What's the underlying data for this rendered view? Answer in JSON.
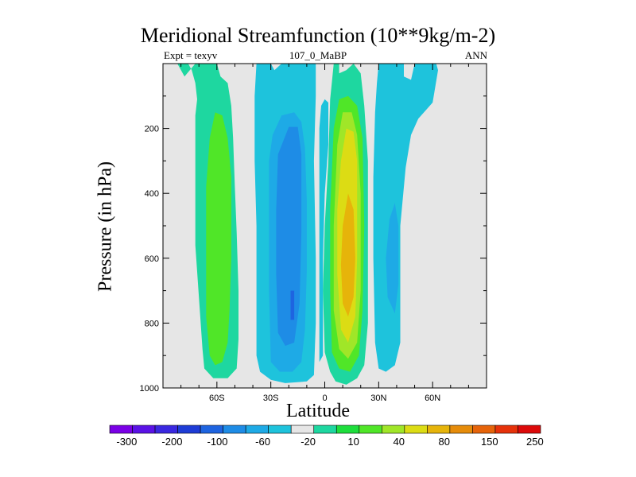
{
  "chart_data": {
    "type": "contour",
    "title": "Meridional Streamfunction (10**9kg/m-2)",
    "subtitle_left": "Expt = texyv",
    "subtitle_center": "107_0_MaBP",
    "subtitle_right": "ANN",
    "xlabel": "Latitude",
    "ylabel": "Pressure (in hPa)",
    "xlim": [
      -90,
      90
    ],
    "ylim": [
      1000,
      0
    ],
    "x_ticks": [
      {
        "value": -60,
        "label": "60S"
      },
      {
        "value": -30,
        "label": "30S"
      },
      {
        "value": 0,
        "label": "0"
      },
      {
        "value": 30,
        "label": "30N"
      },
      {
        "value": 60,
        "label": "60N"
      }
    ],
    "y_ticks": [
      {
        "value": 200,
        "label": "200"
      },
      {
        "value": 400,
        "label": "400"
      },
      {
        "value": 600,
        "label": "600"
      },
      {
        "value": 800,
        "label": "800"
      },
      {
        "value": 1000,
        "label": "1000"
      }
    ],
    "background_color": "#e6e6e6",
    "colorbar": {
      "colors": [
        "#7a00e6",
        "#5a12e6",
        "#3a28e0",
        "#1e3cd6",
        "#1e64e0",
        "#1e8ce6",
        "#1eaae6",
        "#1ec3dc",
        "#e6e6e6",
        "#1ed7a0",
        "#1ede3c",
        "#50e628",
        "#a0e628",
        "#dcdc14",
        "#e6b40a",
        "#e68c0a",
        "#e6640a",
        "#e6320a",
        "#dc0a0a"
      ],
      "tick_labels": [
        "-300",
        "-200",
        "-100",
        "-60",
        "-20",
        "10",
        "40",
        "80",
        "150",
        "250"
      ]
    },
    "contour_regions": [
      {
        "level": "10",
        "color": "#1ed7a0",
        "points": [
          [
            -82,
            0
          ],
          [
            -76,
            0
          ],
          [
            -74,
            20
          ],
          [
            -72,
            60
          ],
          [
            -71,
            110
          ],
          [
            -72,
            160
          ],
          [
            -72,
            250
          ],
          [
            -72,
            400
          ],
          [
            -72,
            560
          ],
          [
            -70,
            720
          ],
          [
            -68,
            880
          ],
          [
            -67,
            940
          ],
          [
            -62,
            970
          ],
          [
            -54,
            970
          ],
          [
            -49,
            940
          ],
          [
            -48,
            850
          ],
          [
            -48,
            700
          ],
          [
            -49,
            520
          ],
          [
            -50,
            380
          ],
          [
            -51,
            230
          ],
          [
            -52,
            130
          ],
          [
            -54,
            60
          ],
          [
            -58,
            40
          ],
          [
            -60,
            0
          ],
          [
            -72,
            0
          ],
          [
            -78,
            40
          ]
        ]
      },
      {
        "level": "40",
        "color": "#50e628",
        "points": [
          [
            -64,
            230
          ],
          [
            -61,
            150
          ],
          [
            -57,
            160
          ],
          [
            -54,
            230
          ],
          [
            -52,
            350
          ],
          [
            -52,
            600
          ],
          [
            -53,
            760
          ],
          [
            -54,
            860
          ],
          [
            -57,
            920
          ],
          [
            -61,
            930
          ],
          [
            -64,
            900
          ],
          [
            -66,
            780
          ],
          [
            -66,
            560
          ],
          [
            -66,
            380
          ]
        ]
      },
      {
        "level": "-20",
        "color": "#1ec3dc",
        "points": [
          [
            -38,
            0
          ],
          [
            -30,
            0
          ],
          [
            -28,
            20
          ],
          [
            -24,
            0
          ],
          [
            -5,
            0
          ],
          [
            -5,
            100
          ],
          [
            -6,
            300
          ],
          [
            -5,
            600
          ],
          [
            -5,
            800
          ],
          [
            -6,
            960
          ],
          [
            -10,
            980
          ],
          [
            -22,
            985
          ],
          [
            -30,
            975
          ],
          [
            -36,
            950
          ],
          [
            -38,
            900
          ],
          [
            -38,
            700
          ],
          [
            -38,
            500
          ],
          [
            -39,
            300
          ],
          [
            -39,
            100
          ]
        ]
      },
      {
        "level": "-60",
        "color": "#1eaae6",
        "points": [
          [
            -29,
            220
          ],
          [
            -24,
            160
          ],
          [
            -17,
            150
          ],
          [
            -13,
            180
          ],
          [
            -11,
            260
          ],
          [
            -10,
            420
          ],
          [
            -10,
            640
          ],
          [
            -11,
            820
          ],
          [
            -13,
            920
          ],
          [
            -18,
            950
          ],
          [
            -25,
            950
          ],
          [
            -30,
            920
          ],
          [
            -31,
            700
          ],
          [
            -31,
            480
          ],
          [
            -31,
            300
          ]
        ]
      },
      {
        "level": "-100",
        "color": "#1e8ce6",
        "points": [
          [
            -26,
            280
          ],
          [
            -20,
            195
          ],
          [
            -15,
            195
          ],
          [
            -13,
            280
          ],
          [
            -13,
            520
          ],
          [
            -14,
            740
          ],
          [
            -17,
            860
          ],
          [
            -22,
            870
          ],
          [
            -26,
            830
          ],
          [
            -27,
            650
          ],
          [
            -27,
            450
          ]
        ]
      },
      {
        "level": "-200",
        "color": "#1e64e0",
        "points": [
          [
            -19,
            700
          ],
          [
            -17,
            700
          ],
          [
            -17,
            790
          ],
          [
            -19,
            790
          ]
        ]
      },
      {
        "level": "-20",
        "color": "#1ec3dc",
        "points": [
          [
            -2,
            130
          ],
          [
            0,
            110
          ],
          [
            2,
            120
          ],
          [
            2,
            250
          ],
          [
            0,
            400
          ],
          [
            -1,
            600
          ],
          [
            -1,
            900
          ],
          [
            -3,
            920
          ],
          [
            -3,
            700
          ],
          [
            -3,
            400
          ],
          [
            -3,
            200
          ]
        ]
      },
      {
        "level": "10",
        "color": "#1ed7a0",
        "points": [
          [
            3,
            110
          ],
          [
            5,
            0
          ],
          [
            8,
            0
          ],
          [
            8,
            30
          ],
          [
            12,
            20
          ],
          [
            16,
            0
          ],
          [
            20,
            30
          ],
          [
            22,
            130
          ],
          [
            24,
            300
          ],
          [
            24,
            600
          ],
          [
            24,
            800
          ],
          [
            22,
            930
          ],
          [
            18,
            970
          ],
          [
            12,
            990
          ],
          [
            6,
            980
          ],
          [
            3,
            950
          ],
          [
            0,
            890
          ],
          [
            -1,
            700
          ],
          [
            0,
            500
          ],
          [
            2,
            300
          ]
        ]
      },
      {
        "level": "40",
        "color": "#50e628",
        "points": [
          [
            5,
            200
          ],
          [
            8,
            110
          ],
          [
            13,
            100
          ],
          [
            18,
            130
          ],
          [
            21,
            230
          ],
          [
            22,
            500
          ],
          [
            21,
            760
          ],
          [
            19,
            900
          ],
          [
            14,
            950
          ],
          [
            8,
            940
          ],
          [
            4,
            890
          ],
          [
            3,
            700
          ],
          [
            3,
            450
          ]
        ]
      },
      {
        "level": "80",
        "color": "#a0e628",
        "points": [
          [
            7,
            250
          ],
          [
            10,
            150
          ],
          [
            15,
            150
          ],
          [
            18,
            220
          ],
          [
            20,
            400
          ],
          [
            20,
            700
          ],
          [
            18,
            860
          ],
          [
            13,
            910
          ],
          [
            8,
            880
          ],
          [
            5,
            760
          ],
          [
            5,
            500
          ]
        ]
      },
      {
        "level": "150",
        "color": "#dcdc14",
        "points": [
          [
            9,
            300
          ],
          [
            12,
            200
          ],
          [
            16,
            210
          ],
          [
            18,
            300
          ],
          [
            18,
            600
          ],
          [
            17,
            780
          ],
          [
            13,
            860
          ],
          [
            9,
            820
          ],
          [
            7,
            650
          ],
          [
            7,
            450
          ]
        ]
      },
      {
        "level": "250",
        "color": "#e6b40a",
        "points": [
          [
            10,
            500
          ],
          [
            13,
            400
          ],
          [
            16,
            450
          ],
          [
            17,
            600
          ],
          [
            16,
            720
          ],
          [
            13,
            780
          ],
          [
            10,
            740
          ],
          [
            9,
            620
          ]
        ]
      },
      {
        "level": "-20",
        "color": "#1ec3dc",
        "points": [
          [
            30,
            0
          ],
          [
            44,
            0
          ],
          [
            44,
            40
          ],
          [
            48,
            50
          ],
          [
            50,
            0
          ],
          [
            56,
            0
          ],
          [
            62,
            0
          ],
          [
            63,
            20
          ],
          [
            60,
            120
          ],
          [
            52,
            170
          ],
          [
            48,
            220
          ],
          [
            45,
            320
          ],
          [
            42,
            500
          ],
          [
            42,
            700
          ],
          [
            42,
            860
          ],
          [
            39,
            930
          ],
          [
            34,
            950
          ],
          [
            30,
            940
          ],
          [
            28,
            860
          ],
          [
            27,
            600
          ],
          [
            27,
            350
          ],
          [
            28,
            150
          ],
          [
            29,
            60
          ]
        ]
      },
      {
        "level": "-60",
        "color": "#1eaae6",
        "points": [
          [
            36,
            480
          ],
          [
            39,
            430
          ],
          [
            41,
            500
          ],
          [
            41,
            680
          ],
          [
            39,
            770
          ],
          [
            35,
            720
          ],
          [
            34,
            600
          ]
        ]
      }
    ]
  }
}
